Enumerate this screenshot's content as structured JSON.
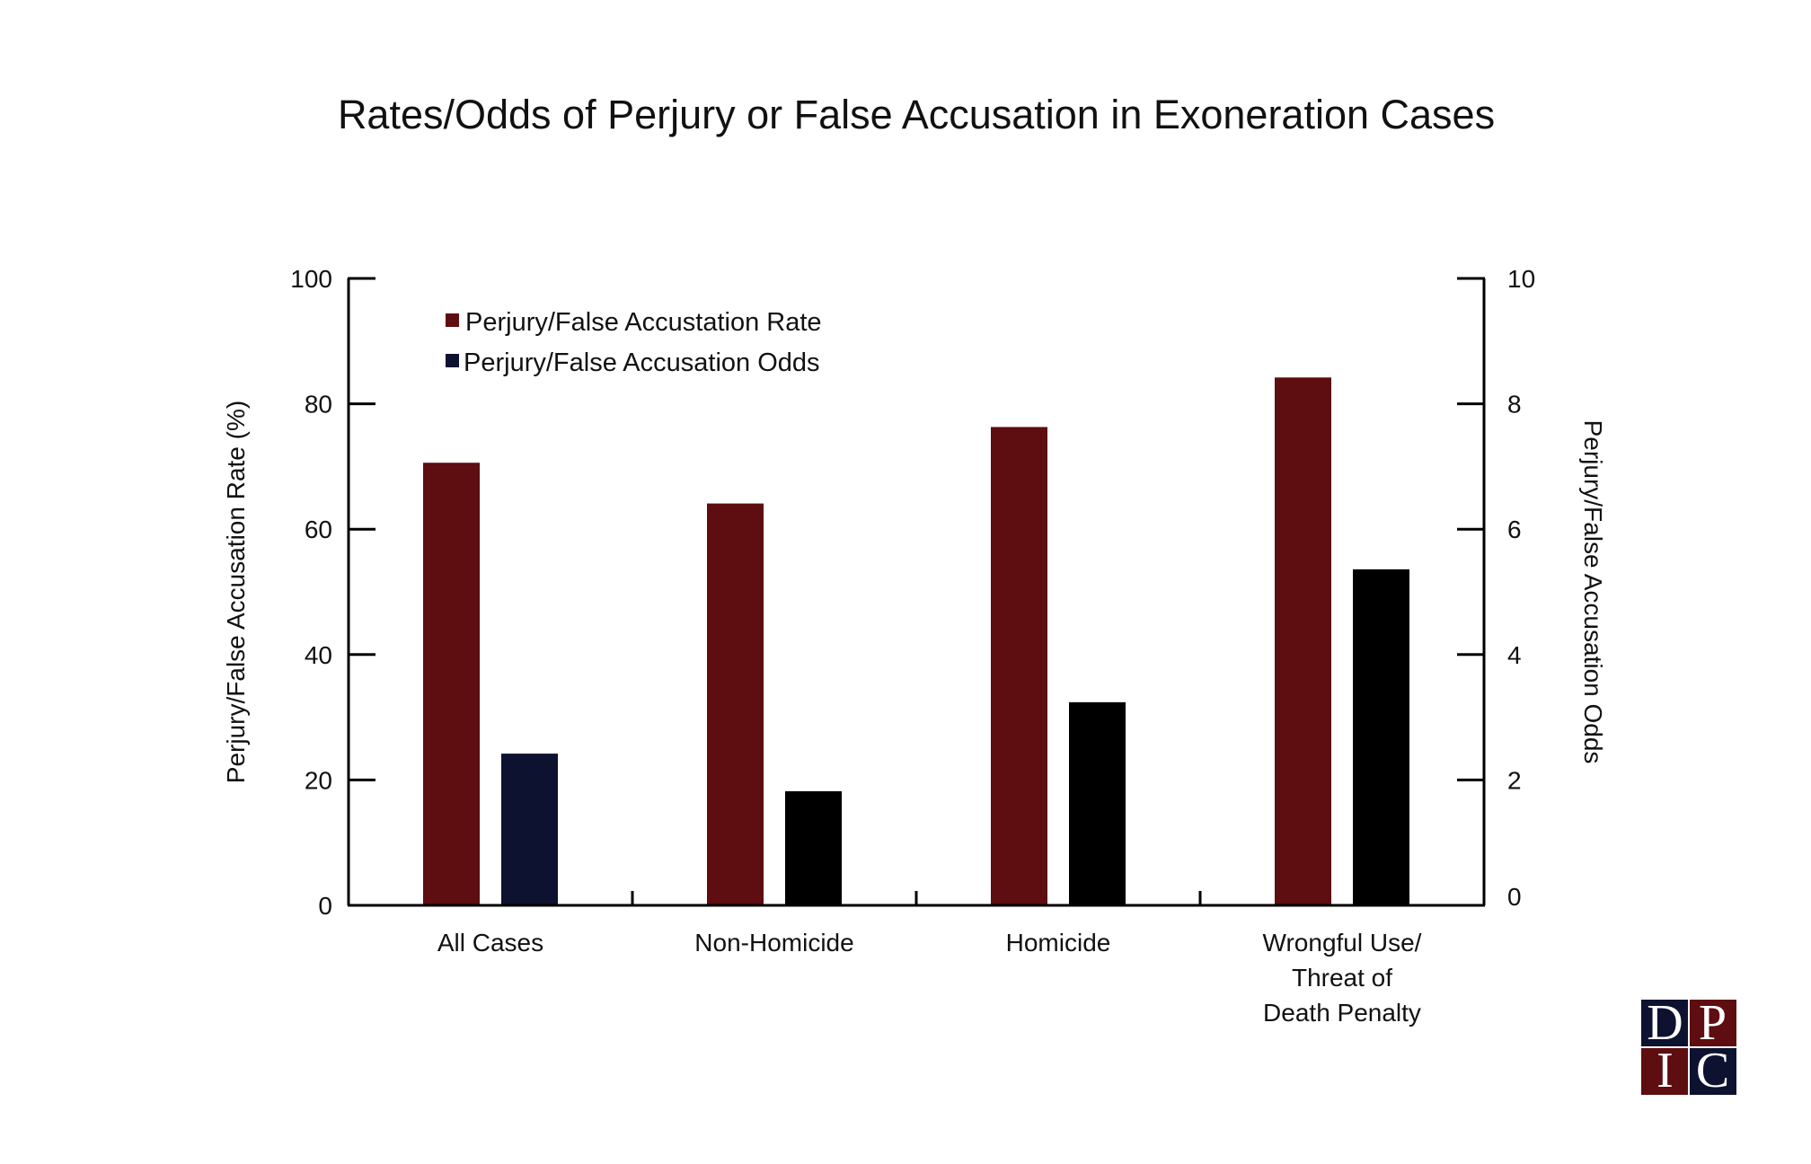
{
  "chart_data": {
    "type": "bar",
    "title": "Rates/Odds of Perjury or False Accusation in Exoneration Cases",
    "categories": [
      [
        "All Cases"
      ],
      [
        "Non-Homicide"
      ],
      [
        "Homicide"
      ],
      [
        "Wrongful Use/",
        "Threat of",
        "Death Penalty"
      ]
    ],
    "series": [
      {
        "name": "Perjury/False Accustation Rate",
        "axis": "left",
        "color": "#5e0d10",
        "values": [
          70.6,
          64.1,
          76.3,
          84.2
        ]
      },
      {
        "name": "Perjury/False Accusation Odds",
        "axis": "right",
        "color": "#0d1230",
        "bar_colors": [
          "#0d1230",
          "#000000",
          "#000000",
          "#000000"
        ],
        "values": [
          2.42,
          1.82,
          3.24,
          5.36
        ]
      }
    ],
    "ylabel": "Perjury/False Accusation Rate (%)",
    "ylim": [
      0,
      100
    ],
    "yticks": [
      "0",
      "20",
      "40",
      "60",
      "80",
      "100"
    ],
    "y2label": "Perjury/False Accusation Odds",
    "y2lim": [
      0,
      10
    ],
    "y2ticks": [
      "0",
      "2",
      "4",
      "6",
      "8",
      "10"
    ],
    "grid": false,
    "legend_position": "top-left"
  },
  "logo": {
    "letters": [
      "D",
      "P",
      "I",
      "C"
    ],
    "colors": [
      "#0d1230",
      "#5e0d10",
      "#5e0d10",
      "#0d1230"
    ]
  }
}
